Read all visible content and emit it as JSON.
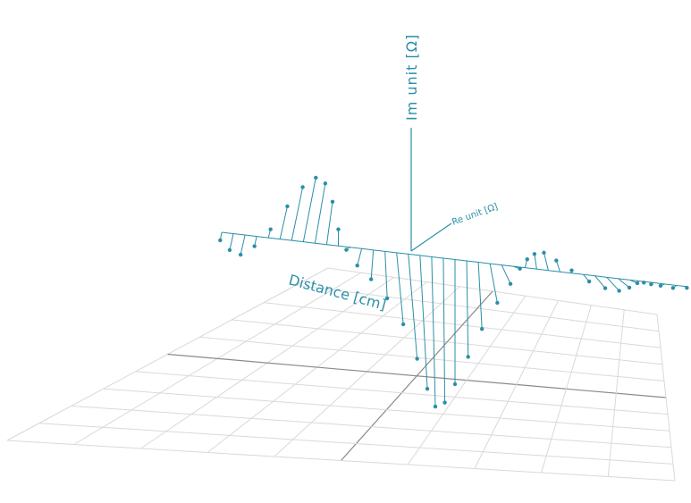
{
  "colors": {
    "accent": "#2a8fa8",
    "grid": "#d9d9d9",
    "grid_center": "#8a8a8a",
    "background": "#ffffff"
  },
  "chart_data": {
    "type": "scatter",
    "projection": "3d-perspective",
    "axis_labels": {
      "z": "Im unit [Ω]",
      "y": "Re unit [Ω]",
      "x": "Distance [cm]"
    },
    "grid": true,
    "series": [
      {
        "name": "",
        "style": "stems from distance axis to (Re, Im) point",
        "x": [
          -10,
          -9.5,
          -9,
          -8.5,
          -8,
          -7.5,
          -7,
          -6.5,
          -6,
          -5.5,
          -5,
          -4.5,
          -4,
          -3.5,
          -3,
          -2.5,
          -2,
          -1.5,
          -1,
          -0.5,
          0,
          0.5,
          1,
          1.5,
          2,
          2.5,
          3,
          3.5,
          4,
          4.5,
          5,
          5.5,
          6,
          6.5,
          7,
          7.5,
          8,
          8.5,
          9,
          9.5,
          10
        ],
        "re": [
          -0.02,
          -0.05,
          -0.06,
          -0.03,
          0.03,
          0.1,
          0.15,
          0.17,
          0.14,
          0.08,
          0.0,
          -0.05,
          -0.06,
          -0.03,
          0.03,
          0.09,
          0.12,
          0.1,
          0.05,
          0.02,
          0.0,
          0.02,
          0.05,
          0.1,
          0.12,
          0.09,
          0.03,
          -0.03,
          -0.06,
          -0.05,
          0.0,
          0.08,
          0.14,
          0.17,
          0.15,
          0.1,
          0.03,
          -0.03,
          -0.06,
          -0.05,
          -0.02
        ],
        "im": [
          -0.05,
          -0.1,
          -0.12,
          -0.06,
          0.05,
          0.2,
          0.33,
          0.4,
          0.38,
          0.28,
          0.12,
          0.0,
          -0.1,
          -0.2,
          -0.35,
          -0.55,
          -0.8,
          -1.0,
          -1.1,
          -1.05,
          -0.9,
          -0.7,
          -0.5,
          -0.32,
          -0.18,
          -0.05,
          0.05,
          0.12,
          0.15,
          0.1,
          0.02,
          -0.08,
          -0.14,
          -0.16,
          -0.12,
          -0.06,
          -0.02,
          0.0,
          0.01,
          0.0,
          0.0
        ]
      }
    ]
  }
}
